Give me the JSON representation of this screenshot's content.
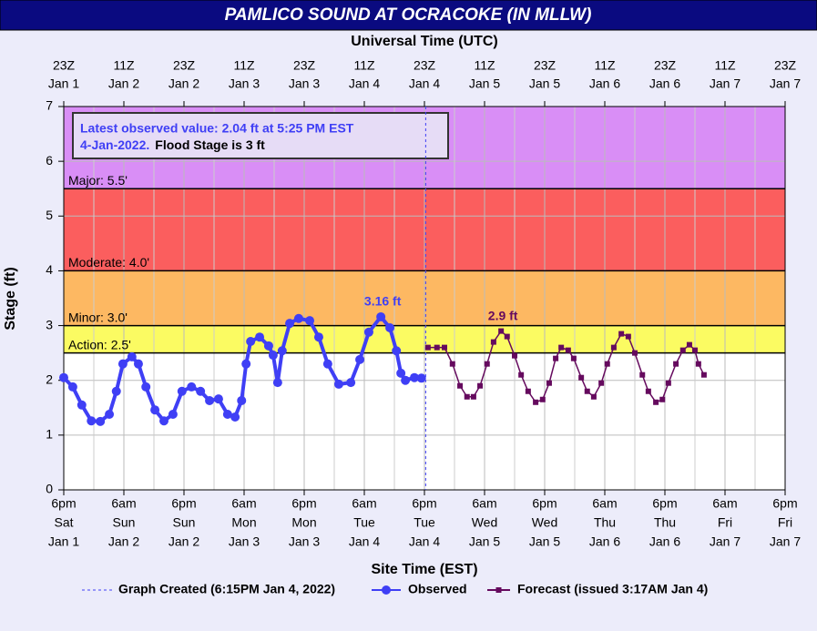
{
  "chart_data": {
    "type": "line",
    "title": "PAMLICO SOUND AT OCRACOKE (IN MLLW)",
    "x2label": "Universal Time (UTC)",
    "xlabel": "Site Time (EST)",
    "ylabel": "Stage (ft)",
    "xlim": [
      0,
      144
    ],
    "ylim": [
      0,
      7
    ],
    "yticks": [
      0,
      1,
      2,
      3,
      4,
      5,
      6,
      7
    ],
    "grid": true,
    "legend": "bottom",
    "xticks": [
      {
        "value": 0,
        "label": [
          "6pm",
          "Sat",
          "Jan 1"
        ]
      },
      {
        "value": 12,
        "label": [
          "6am",
          "Sun",
          "Jan 2"
        ]
      },
      {
        "value": 24,
        "label": [
          "6pm",
          "Sun",
          "Jan 2"
        ]
      },
      {
        "value": 36,
        "label": [
          "6am",
          "Mon",
          "Jan 3"
        ]
      },
      {
        "value": 48,
        "label": [
          "6pm",
          "Mon",
          "Jan 3"
        ]
      },
      {
        "value": 60,
        "label": [
          "6am",
          "Tue",
          "Jan 4"
        ]
      },
      {
        "value": 72,
        "label": [
          "6pm",
          "Tue",
          "Jan 4"
        ]
      },
      {
        "value": 84,
        "label": [
          "6am",
          "Wed",
          "Jan 5"
        ]
      },
      {
        "value": 96,
        "label": [
          "6pm",
          "Wed",
          "Jan 5"
        ]
      },
      {
        "value": 108,
        "label": [
          "6am",
          "Thu",
          "Jan 6"
        ]
      },
      {
        "value": 120,
        "label": [
          "6pm",
          "Thu",
          "Jan 6"
        ]
      },
      {
        "value": 132,
        "label": [
          "6am",
          "Fri",
          "Jan 7"
        ]
      },
      {
        "value": 144,
        "label": [
          "6pm",
          "Fri",
          "Jan 7"
        ]
      }
    ],
    "x2ticks": [
      {
        "value": 0,
        "label": [
          "23Z",
          "Jan 1"
        ]
      },
      {
        "value": 12,
        "label": [
          "11Z",
          "Jan 2"
        ]
      },
      {
        "value": 24,
        "label": [
          "23Z",
          "Jan 2"
        ]
      },
      {
        "value": 36,
        "label": [
          "11Z",
          "Jan 3"
        ]
      },
      {
        "value": 48,
        "label": [
          "23Z",
          "Jan 3"
        ]
      },
      {
        "value": 60,
        "label": [
          "11Z",
          "Jan 4"
        ]
      },
      {
        "value": 72,
        "label": [
          "23Z",
          "Jan 4"
        ]
      },
      {
        "value": 84,
        "label": [
          "11Z",
          "Jan 5"
        ]
      },
      {
        "value": 96,
        "label": [
          "23Z",
          "Jan 5"
        ]
      },
      {
        "value": 108,
        "label": [
          "11Z",
          "Jan 6"
        ]
      },
      {
        "value": 120,
        "label": [
          "23Z",
          "Jan 6"
        ]
      },
      {
        "value": 132,
        "label": [
          "11Z",
          "Jan 7"
        ]
      },
      {
        "value": 144,
        "label": [
          "23Z",
          "Jan 7"
        ]
      }
    ],
    "flood_categories": [
      {
        "label": "Action: 2.5'",
        "value": 2.5,
        "color": "#fbfb62"
      },
      {
        "label": "Minor: 3.0'",
        "value": 3.0,
        "color": "#fdb862"
      },
      {
        "label": "Moderate: 4.0'",
        "value": 4.0,
        "color": "#fb5e5e"
      },
      {
        "label": "Major: 5.5'",
        "value": 5.5,
        "color": "#d98ef6"
      }
    ],
    "series": [
      {
        "name": "Observed",
        "color": "#3f3ff5",
        "marker": "circle",
        "x": [
          0,
          1.8,
          3.6,
          5.5,
          7.3,
          9.1,
          10.5,
          11.8,
          13.6,
          14.9,
          16.4,
          18.2,
          20,
          21.8,
          23.6,
          25.5,
          27.3,
          29.1,
          30.9,
          32.7,
          34.2,
          35.5,
          36.4,
          37.3,
          39.1,
          40.9,
          41.8,
          42.7,
          43.6,
          45.1,
          46.9,
          49.1,
          50.9,
          52.7,
          54.9,
          57.3,
          59.1,
          60.9,
          63.3,
          65.1,
          66.4,
          67.3,
          68.2,
          70,
          71.4
        ],
        "values": [
          2.05,
          1.88,
          1.55,
          1.26,
          1.25,
          1.38,
          1.8,
          2.3,
          2.43,
          2.3,
          1.88,
          1.46,
          1.26,
          1.38,
          1.8,
          1.88,
          1.8,
          1.63,
          1.66,
          1.38,
          1.33,
          1.63,
          2.3,
          2.71,
          2.79,
          2.63,
          2.46,
          1.96,
          2.54,
          3.04,
          3.13,
          3.09,
          2.79,
          2.3,
          1.93,
          1.96,
          2.38,
          2.88,
          3.16,
          2.96,
          2.54,
          2.13,
          2.0,
          2.05,
          2.04
        ]
      },
      {
        "name": "Forecast (issued 3:17AM Jan 4)",
        "color": "#650a5e",
        "marker": "square",
        "x": [
          72.7,
          74.5,
          76,
          77.6,
          79.1,
          80.5,
          81.8,
          83.1,
          84.5,
          85.8,
          87.3,
          88.5,
          90,
          91.3,
          92.7,
          94.2,
          95.6,
          96.9,
          98.2,
          99.3,
          100.7,
          101.8,
          103.3,
          104.5,
          105.8,
          107.3,
          108.5,
          109.8,
          111.3,
          112.7,
          114,
          115.5,
          116.7,
          118.2,
          119.5,
          120.7,
          122.2,
          123.6,
          124.9,
          126,
          126.7,
          127.8
        ],
        "values": [
          2.6,
          2.6,
          2.6,
          2.3,
          1.9,
          1.7,
          1.7,
          1.9,
          2.3,
          2.7,
          2.9,
          2.8,
          2.45,
          2.1,
          1.8,
          1.6,
          1.65,
          1.95,
          2.4,
          2.6,
          2.55,
          2.4,
          2.05,
          1.8,
          1.7,
          1.95,
          2.3,
          2.6,
          2.85,
          2.8,
          2.5,
          2.1,
          1.8,
          1.6,
          1.65,
          1.95,
          2.3,
          2.55,
          2.65,
          2.55,
          2.3,
          2.1
        ]
      }
    ],
    "graph_created": {
      "name": "Graph Created (6:15PM Jan 4, 2022)",
      "x": 72.25,
      "color": "#3f3ff5"
    },
    "annotations": [
      {
        "text": "3.16 ft",
        "x": 63.3,
        "y": 3.16,
        "color": "#3f3ff5"
      },
      {
        "text": "2.9 ft",
        "x": 87.3,
        "y": 2.9,
        "color": "#650a5e"
      }
    ],
    "info": {
      "lines": [
        "Latest observed value: 2.04 ft at 5:25 PM EST",
        "4-Jan-2022."
      ],
      "flood_stage": "Flood Stage is 3 ft"
    }
  }
}
